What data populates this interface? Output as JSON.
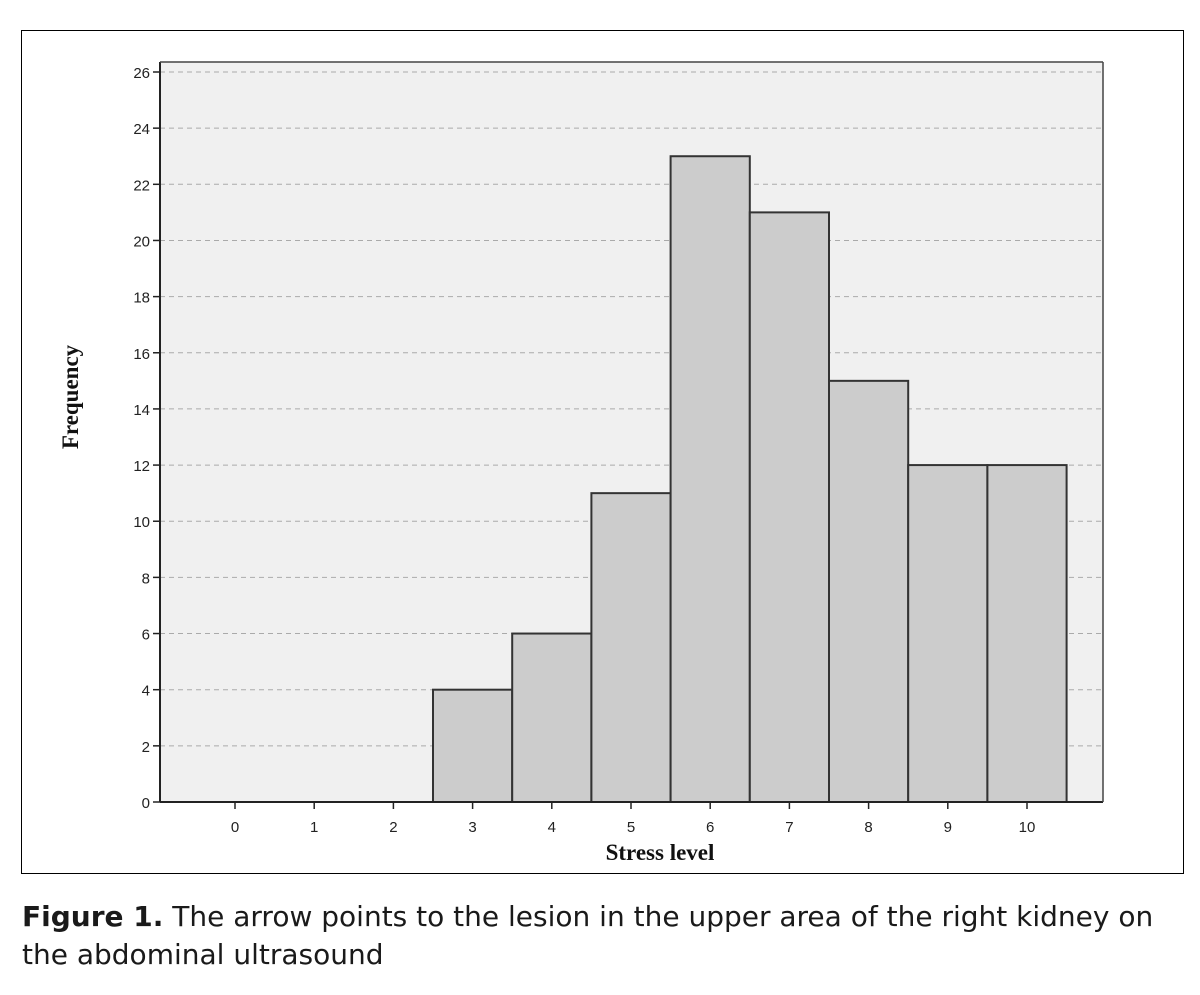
{
  "chart_data": {
    "type": "bar",
    "subtype": "histogram",
    "categories": [
      "0",
      "1",
      "2",
      "3",
      "4",
      "5",
      "6",
      "7",
      "8",
      "9",
      "10"
    ],
    "values": [
      0,
      0,
      0,
      4,
      6,
      11,
      23,
      21,
      15,
      12,
      12
    ],
    "xlabel": "Stress level",
    "ylabel": "Frequency",
    "ylim": [
      0,
      26
    ],
    "yticks": [
      0,
      2,
      4,
      6,
      8,
      10,
      12,
      14,
      16,
      18,
      20,
      22,
      24,
      26
    ],
    "grid": "horizontal-dashed",
    "colors": {
      "plot_background": "#f0f0f0",
      "bar_fill": "#cccccc",
      "bar_stroke": "#333333",
      "grid": "#aaaaaa"
    }
  },
  "caption": {
    "label": "Figure 1.",
    "text": " The arrow points to the lesion in the upper area of the right kidney on the abdominal ultrasound"
  }
}
